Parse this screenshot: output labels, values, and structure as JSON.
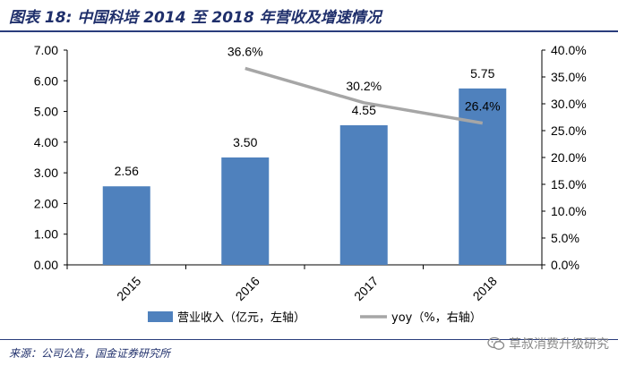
{
  "header": {
    "title": "图表 18:  中国科培 2014 至 2018 年营收及增速情况"
  },
  "footer": {
    "source": "来源：公司公告，国金证券研究所",
    "watermark": "草叔消费升级研究"
  },
  "chart_data": {
    "type": "bar",
    "categories": [
      "2015",
      "2016",
      "2017",
      "2018"
    ],
    "series": [
      {
        "name": "营业收入（亿元，左轴）",
        "type": "bar",
        "axis": "left",
        "values": [
          2.56,
          3.5,
          4.55,
          5.75
        ],
        "labels": [
          "2.56",
          "3.50",
          "4.55",
          "5.75"
        ],
        "color": "#4f81bd"
      },
      {
        "name": "yoy（%，右轴）",
        "type": "line",
        "axis": "right",
        "values": [
          null,
          36.6,
          30.2,
          26.4
        ],
        "labels": [
          "",
          "36.6%",
          "30.2%",
          "26.4%"
        ],
        "color": "#a6a6a6"
      }
    ],
    "y_left": {
      "ylim": [
        0,
        7
      ],
      "ticks": [
        "0.00",
        "1.00",
        "2.00",
        "3.00",
        "4.00",
        "5.00",
        "6.00",
        "7.00"
      ]
    },
    "y_right": {
      "ylim": [
        0,
        40
      ],
      "ticks": [
        "0.0%",
        "5.0%",
        "10.0%",
        "15.0%",
        "20.0%",
        "25.0%",
        "30.0%",
        "35.0%",
        "40.0%"
      ]
    },
    "grid": false,
    "legend_position": "bottom"
  }
}
